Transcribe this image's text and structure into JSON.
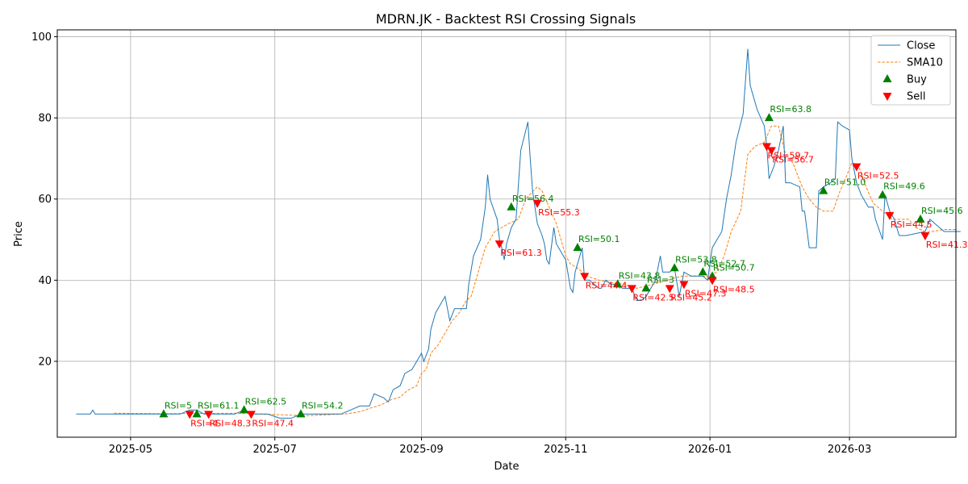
{
  "chart_data": {
    "type": "line",
    "title": "MDRN.JK - Backtest RSI Crossing Signals",
    "xlabel": "Date",
    "ylabel": "Price",
    "xlim": [
      "2025-03-31",
      "2026-04-15"
    ],
    "ylim": [
      1.3,
      101.7
    ],
    "grid": true,
    "legend_position": "top-right",
    "x_ticks": [
      {
        "date": "2025-05-01",
        "label": "2025-05"
      },
      {
        "date": "2025-07-01",
        "label": "2025-07"
      },
      {
        "date": "2025-09-01",
        "label": "2025-09"
      },
      {
        "date": "2025-11-01",
        "label": "2025-11"
      },
      {
        "date": "2026-01-01",
        "label": "2026-01"
      },
      {
        "date": "2026-03-01",
        "label": "2026-03"
      }
    ],
    "y_ticks": [
      20,
      40,
      60,
      80,
      100
    ],
    "colors": {
      "close": "#1f77b4",
      "sma": "#ff7f0e",
      "buy": "#008000",
      "sell": "#ff0000",
      "grid": "#b0b0b0"
    },
    "legend": [
      "Close",
      "SMA10",
      "Buy",
      "Sell"
    ],
    "series": [
      {
        "name": "Close",
        "style": "solid",
        "points": [
          [
            "2025-04-08",
            7
          ],
          [
            "2025-04-12",
            7
          ],
          [
            "2025-04-14",
            7
          ],
          [
            "2025-04-15",
            8
          ],
          [
            "2025-04-16",
            7
          ],
          [
            "2025-04-20",
            7
          ],
          [
            "2025-04-25",
            7
          ],
          [
            "2025-05-01",
            7
          ],
          [
            "2025-05-08",
            7
          ],
          [
            "2025-05-15",
            7
          ],
          [
            "2025-05-19",
            7
          ],
          [
            "2025-05-22",
            7
          ],
          [
            "2025-05-26",
            8
          ],
          [
            "2025-05-29",
            8
          ],
          [
            "2025-06-01",
            7
          ],
          [
            "2025-06-05",
            7
          ],
          [
            "2025-06-10",
            7
          ],
          [
            "2025-06-14",
            7
          ],
          [
            "2025-06-18",
            8
          ],
          [
            "2025-06-21",
            7
          ],
          [
            "2025-06-25",
            7
          ],
          [
            "2025-06-28",
            7
          ],
          [
            "2025-07-03",
            6
          ],
          [
            "2025-07-08",
            6
          ],
          [
            "2025-07-12",
            7
          ],
          [
            "2025-07-18",
            7
          ],
          [
            "2025-07-24",
            7
          ],
          [
            "2025-07-29",
            7
          ],
          [
            "2025-08-02",
            8
          ],
          [
            "2025-08-06",
            9
          ],
          [
            "2025-08-10",
            9
          ],
          [
            "2025-08-12",
            12
          ],
          [
            "2025-08-16",
            11
          ],
          [
            "2025-08-18",
            10
          ],
          [
            "2025-08-20",
            13
          ],
          [
            "2025-08-23",
            14
          ],
          [
            "2025-08-25",
            17
          ],
          [
            "2025-08-28",
            18
          ],
          [
            "2025-08-30",
            20
          ],
          [
            "2025-09-01",
            22
          ],
          [
            "2025-09-02",
            20
          ],
          [
            "2025-09-04",
            23
          ],
          [
            "2025-09-05",
            28
          ],
          [
            "2025-09-07",
            32
          ],
          [
            "2025-09-10",
            35
          ],
          [
            "2025-09-11",
            36
          ],
          [
            "2025-09-13",
            30
          ],
          [
            "2025-09-15",
            33
          ],
          [
            "2025-09-18",
            33
          ],
          [
            "2025-09-20",
            33
          ],
          [
            "2025-09-21",
            39
          ],
          [
            "2025-09-23",
            46
          ],
          [
            "2025-09-26",
            50
          ],
          [
            "2025-09-28",
            58
          ],
          [
            "2025-09-29",
            66
          ],
          [
            "2025-09-30",
            60
          ],
          [
            "2025-10-03",
            55
          ],
          [
            "2025-10-04",
            50
          ],
          [
            "2025-10-05",
            48
          ],
          [
            "2025-10-06",
            45
          ],
          [
            "2025-10-07",
            49
          ],
          [
            "2025-10-09",
            53
          ],
          [
            "2025-10-11",
            55
          ],
          [
            "2025-10-13",
            72
          ],
          [
            "2025-10-16",
            79
          ],
          [
            "2025-10-17",
            70
          ],
          [
            "2025-10-18",
            62
          ],
          [
            "2025-10-20",
            54
          ],
          [
            "2025-10-22",
            51
          ],
          [
            "2025-10-23",
            49
          ],
          [
            "2025-10-24",
            45
          ],
          [
            "2025-10-25",
            44
          ],
          [
            "2025-10-27",
            53
          ],
          [
            "2025-10-28",
            49
          ],
          [
            "2025-10-30",
            47
          ],
          [
            "2025-11-01",
            45
          ],
          [
            "2025-11-03",
            38
          ],
          [
            "2025-11-04",
            37
          ],
          [
            "2025-11-05",
            42
          ],
          [
            "2025-11-06",
            44
          ],
          [
            "2025-11-08",
            48
          ],
          [
            "2025-11-09",
            40
          ],
          [
            "2025-11-11",
            40
          ],
          [
            "2025-11-13",
            39
          ],
          [
            "2025-11-15",
            38
          ],
          [
            "2025-11-16",
            38
          ],
          [
            "2025-11-18",
            40
          ],
          [
            "2025-11-20",
            39
          ],
          [
            "2025-11-23",
            39
          ],
          [
            "2025-11-25",
            38
          ],
          [
            "2025-11-27",
            38
          ],
          [
            "2025-11-29",
            38
          ],
          [
            "2025-12-01",
            35
          ],
          [
            "2025-12-03",
            35
          ],
          [
            "2025-12-05",
            36
          ],
          [
            "2025-12-07",
            38
          ],
          [
            "2025-12-09",
            40
          ],
          [
            "2025-12-11",
            46
          ],
          [
            "2025-12-12",
            42
          ],
          [
            "2025-12-15",
            42
          ],
          [
            "2025-12-17",
            43
          ],
          [
            "2025-12-19",
            36
          ],
          [
            "2025-12-21",
            42
          ],
          [
            "2025-12-24",
            41
          ],
          [
            "2025-12-27",
            41
          ],
          [
            "2025-12-29",
            41
          ],
          [
            "2025-12-31",
            40
          ],
          [
            "2026-01-02",
            48
          ],
          [
            "2026-01-04",
            50
          ],
          [
            "2026-01-06",
            52
          ],
          [
            "2026-01-08",
            60
          ],
          [
            "2026-01-10",
            66
          ],
          [
            "2026-01-12",
            74
          ],
          [
            "2026-01-15",
            81
          ],
          [
            "2026-01-17",
            97
          ],
          [
            "2026-01-18",
            88
          ],
          [
            "2026-01-21",
            82
          ],
          [
            "2026-01-24",
            78
          ],
          [
            "2026-01-25",
            73
          ],
          [
            "2026-01-26",
            65
          ],
          [
            "2026-01-28",
            68
          ],
          [
            "2026-01-30",
            72
          ],
          [
            "2026-02-01",
            78
          ],
          [
            "2026-02-02",
            64
          ],
          [
            "2026-02-04",
            64
          ],
          [
            "2026-02-08",
            63
          ],
          [
            "2026-02-09",
            57
          ],
          [
            "2026-02-10",
            57
          ],
          [
            "2026-02-12",
            48
          ],
          [
            "2026-02-15",
            48
          ],
          [
            "2026-02-16",
            62
          ],
          [
            "2026-02-18",
            63
          ],
          [
            "2026-02-21",
            64
          ],
          [
            "2026-02-23",
            65
          ],
          [
            "2026-02-24",
            79
          ],
          [
            "2026-02-26",
            78
          ],
          [
            "2026-03-01",
            77
          ],
          [
            "2026-03-02",
            70
          ],
          [
            "2026-03-04",
            64
          ],
          [
            "2026-03-06",
            61
          ],
          [
            "2026-03-09",
            58
          ],
          [
            "2026-03-11",
            58
          ],
          [
            "2026-03-12",
            55
          ],
          [
            "2026-03-15",
            50
          ],
          [
            "2026-03-16",
            61
          ],
          [
            "2026-03-18",
            57
          ],
          [
            "2026-03-20",
            55
          ],
          [
            "2026-03-22",
            51
          ],
          [
            "2026-03-25",
            51
          ],
          [
            "2026-04-02",
            52
          ],
          [
            "2026-04-04",
            55
          ],
          [
            "2026-04-06",
            54
          ],
          [
            "2026-04-08",
            53
          ],
          [
            "2026-04-10",
            52
          ],
          [
            "2026-04-12",
            52
          ],
          [
            "2026-04-15",
            52
          ],
          [
            "2026-04-17",
            52
          ]
        ]
      },
      {
        "name": "SMA10",
        "style": "dashed",
        "points": [
          [
            "2025-04-24",
            7.2
          ],
          [
            "2025-05-15",
            7.1
          ],
          [
            "2025-06-15",
            7.2
          ],
          [
            "2025-07-15",
            6.6
          ],
          [
            "2025-08-01",
            7.1
          ],
          [
            "2025-08-06",
            7.6
          ],
          [
            "2025-08-10",
            8.4
          ],
          [
            "2025-08-15",
            9.3
          ],
          [
            "2025-08-19",
            10.5
          ],
          [
            "2025-08-23",
            11.2
          ],
          [
            "2025-08-26",
            12.8
          ],
          [
            "2025-08-30",
            14
          ],
          [
            "2025-09-01",
            17
          ],
          [
            "2025-09-03",
            18
          ],
          [
            "2025-09-05",
            22
          ],
          [
            "2025-09-08",
            24
          ],
          [
            "2025-09-11",
            27
          ],
          [
            "2025-09-14",
            30
          ],
          [
            "2025-09-17",
            32
          ],
          [
            "2025-09-20",
            35
          ],
          [
            "2025-09-22",
            36
          ],
          [
            "2025-09-25",
            42
          ],
          [
            "2025-09-28",
            48
          ],
          [
            "2025-10-02",
            52
          ],
          [
            "2025-10-05",
            53
          ],
          [
            "2025-10-08",
            54
          ],
          [
            "2025-10-12",
            55
          ],
          [
            "2025-10-15",
            60
          ],
          [
            "2025-10-20",
            63
          ],
          [
            "2025-10-22",
            62
          ],
          [
            "2025-10-25",
            58
          ],
          [
            "2025-10-28",
            54
          ],
          [
            "2025-10-30",
            50
          ],
          [
            "2025-11-01",
            46
          ],
          [
            "2025-11-03",
            44
          ],
          [
            "2025-11-06",
            43
          ],
          [
            "2025-11-10",
            41
          ],
          [
            "2025-11-15",
            40
          ],
          [
            "2025-11-20",
            39.5
          ],
          [
            "2025-11-26",
            39
          ],
          [
            "2025-12-01",
            38
          ],
          [
            "2025-12-08",
            39
          ],
          [
            "2025-12-14",
            40
          ],
          [
            "2025-12-20",
            41
          ],
          [
            "2025-12-25",
            41
          ],
          [
            "2025-12-31",
            41
          ],
          [
            "2026-01-04",
            42
          ],
          [
            "2026-01-07",
            46
          ],
          [
            "2026-01-10",
            52
          ],
          [
            "2026-01-14",
            57
          ],
          [
            "2026-01-17",
            71
          ],
          [
            "2026-01-20",
            73
          ],
          [
            "2026-01-24",
            74
          ],
          [
            "2026-01-27",
            78
          ],
          [
            "2026-01-30",
            78
          ],
          [
            "2026-02-02",
            71
          ],
          [
            "2026-02-05",
            69
          ],
          [
            "2026-02-09",
            63
          ],
          [
            "2026-02-12",
            60
          ],
          [
            "2026-02-15",
            58
          ],
          [
            "2026-02-18",
            57
          ],
          [
            "2026-02-22",
            57
          ],
          [
            "2026-02-25",
            62
          ],
          [
            "2026-02-28",
            66
          ],
          [
            "2026-03-02",
            69
          ],
          [
            "2026-03-05",
            68
          ],
          [
            "2026-03-08",
            63
          ],
          [
            "2026-03-11",
            59
          ],
          [
            "2026-03-15",
            57
          ],
          [
            "2026-03-19",
            55
          ],
          [
            "2026-03-23",
            55
          ],
          [
            "2026-03-26",
            55
          ],
          [
            "2026-03-29",
            53
          ],
          [
            "2026-04-02",
            52
          ],
          [
            "2026-04-05",
            52
          ],
          [
            "2026-04-10",
            52.5
          ],
          [
            "2026-04-15",
            52.5
          ]
        ]
      }
    ],
    "buy_signals": [
      {
        "date": "2025-05-15",
        "price": 7,
        "label": "RSI=5"
      },
      {
        "date": "2025-05-29",
        "price": 7,
        "label": "RSI=61.1"
      },
      {
        "date": "2025-06-18",
        "price": 8,
        "label": "RSI=62.5"
      },
      {
        "date": "2025-07-12",
        "price": 7,
        "label": "RSI=54.2"
      },
      {
        "date": "2025-10-09",
        "price": 58,
        "label": "RSI=56.4"
      },
      {
        "date": "2025-11-06",
        "price": 48,
        "label": "RSI=50.1"
      },
      {
        "date": "2025-11-23",
        "price": 39,
        "label": "RSI=43.8"
      },
      {
        "date": "2025-12-05",
        "price": 38,
        "label": "RSI=3"
      },
      {
        "date": "2025-12-17",
        "price": 43,
        "label": "RSI=53.8"
      },
      {
        "date": "2025-12-29",
        "price": 42,
        "label": "RSI=52.7"
      },
      {
        "date": "2026-01-02",
        "price": 41,
        "label": "RSI=50.7"
      },
      {
        "date": "2026-01-26",
        "price": 80,
        "label": "RSI=63.8"
      },
      {
        "date": "2026-02-18",
        "price": 62,
        "label": "RSI=51.0"
      },
      {
        "date": "2026-03-15",
        "price": 61,
        "label": "RSI=49.6"
      },
      {
        "date": "2026-03-31",
        "price": 55,
        "label": "RSI=45.6"
      }
    ],
    "sell_signals": [
      {
        "date": "2025-05-26",
        "price": 7,
        "label": "RSI=4"
      },
      {
        "date": "2025-06-03",
        "price": 7,
        "label": "RSI=48.3"
      },
      {
        "date": "2025-06-21",
        "price": 7,
        "label": "RSI=47.4"
      },
      {
        "date": "2025-10-04",
        "price": 49,
        "label": "RSI=61.3"
      },
      {
        "date": "2025-10-20",
        "price": 59,
        "label": "RSI=55.3"
      },
      {
        "date": "2025-11-09",
        "price": 41,
        "label": "RSI=44.4"
      },
      {
        "date": "2025-11-29",
        "price": 38,
        "label": "RSI=42.5"
      },
      {
        "date": "2025-12-15",
        "price": 38,
        "label": "RSI=45.2"
      },
      {
        "date": "2025-12-21",
        "price": 39,
        "label": "RSI=47.3"
      },
      {
        "date": "2026-01-02",
        "price": 40,
        "label": "RSI=48.5"
      },
      {
        "date": "2026-01-25",
        "price": 73,
        "label": "RSI=59.7"
      },
      {
        "date": "2026-01-27",
        "price": 72,
        "label": "RSI=56.7"
      },
      {
        "date": "2026-03-04",
        "price": 68,
        "label": "RSI=52.5"
      },
      {
        "date": "2026-03-18",
        "price": 56,
        "label": "RSI=44.5"
      },
      {
        "date": "2026-04-02",
        "price": 51,
        "label": "RSI=41.3"
      }
    ]
  }
}
